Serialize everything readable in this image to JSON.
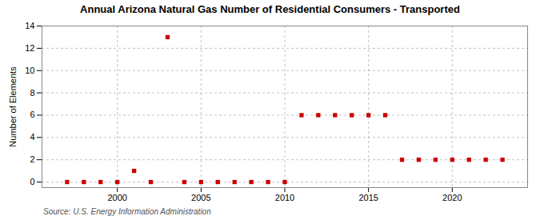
{
  "chart_data": {
    "type": "scatter",
    "title": "Annual Arizona Natural Gas Number of Residential Consumers - Transported",
    "ylabel": "Number of Elements",
    "source": "Source: U.S. Energy Information Administration",
    "x": [
      1997,
      1998,
      1999,
      2000,
      2001,
      2002,
      2003,
      2004,
      2005,
      2006,
      2007,
      2008,
      2009,
      2010,
      2011,
      2012,
      2013,
      2014,
      2015,
      2016,
      2017,
      2018,
      2019,
      2020,
      2021,
      2022,
      2023
    ],
    "values": [
      0,
      0,
      0,
      0,
      1,
      0,
      13,
      0,
      0,
      0,
      0,
      0,
      0,
      0,
      6,
      6,
      6,
      6,
      6,
      6,
      2,
      2,
      2,
      2,
      2,
      2,
      2
    ],
    "color": "#cc0000",
    "marker": "square",
    "xlim": [
      1995.5,
      2024.5
    ],
    "xticks": [
      2000,
      2005,
      2010,
      2015,
      2020
    ],
    "ylim": [
      -0.5,
      14
    ],
    "yticks": [
      0,
      2,
      4,
      6,
      8,
      10,
      12,
      14
    ],
    "grid": true
  }
}
